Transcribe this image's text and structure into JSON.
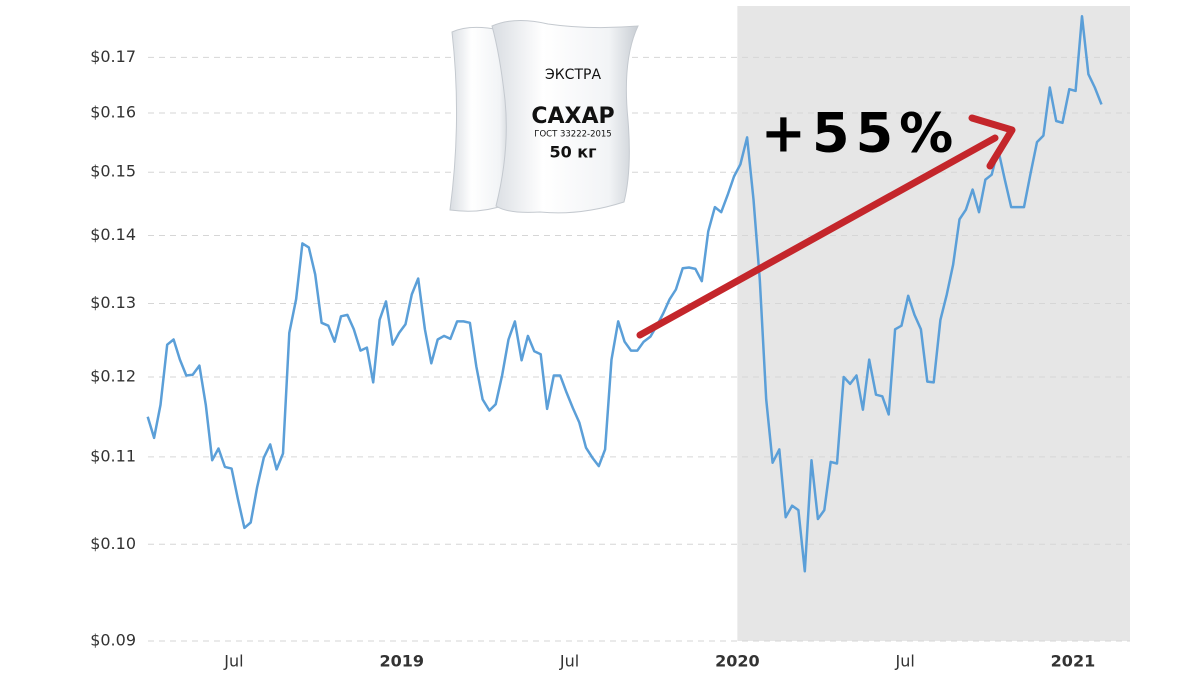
{
  "chart_data": {
    "type": "line",
    "log_scale": true,
    "grid": true,
    "color": "#5b9fd8",
    "highlight_start": 2020,
    "annotation": "+55%",
    "bag_labels": [
      "ЭКСТРА",
      "САХАР",
      "ГОСТ 33222-2015",
      "50 кг"
    ],
    "xlim": [
      2018.22,
      2021.17
    ],
    "ylim": [
      0.09,
      0.179
    ],
    "xticks": [
      {
        "value": 2018.5,
        "label": "Jul"
      },
      2019,
      {
        "value": 2019.5,
        "label": "Jul"
      },
      2020,
      {
        "value": 2020.5,
        "label": "Jul"
      },
      2021
    ],
    "yticks": [
      {
        "value": 0.09,
        "label": "$0.09"
      },
      {
        "value": 0.1,
        "label": "$0.10"
      },
      {
        "value": 0.11,
        "label": "$0.11"
      },
      {
        "value": 0.12,
        "label": "$0.12"
      },
      {
        "value": 0.13,
        "label": "$0.13"
      },
      {
        "value": 0.14,
        "label": "$0.14"
      },
      {
        "value": 0.15,
        "label": "$0.15"
      },
      {
        "value": 0.16,
        "label": "$0.16"
      },
      {
        "value": 0.17,
        "label": "$0.17"
      }
    ],
    "x": [
      2018.243,
      2018.262,
      2018.281,
      2018.301,
      2018.32,
      2018.339,
      2018.358,
      2018.377,
      2018.397,
      2018.416,
      2018.435,
      2018.454,
      2018.473,
      2018.493,
      2018.512,
      2018.531,
      2018.55,
      2018.569,
      2018.589,
      2018.608,
      2018.627,
      2018.646,
      2018.665,
      2018.685,
      2018.704,
      2018.723,
      2018.742,
      2018.761,
      2018.781,
      2018.8,
      2018.819,
      2018.838,
      2018.857,
      2018.877,
      2018.896,
      2018.915,
      2018.934,
      2018.953,
      2018.973,
      2018.992,
      2019.011,
      2019.03,
      2019.049,
      2019.069,
      2019.088,
      2019.107,
      2019.126,
      2019.145,
      2019.165,
      2019.184,
      2019.203,
      2019.222,
      2019.241,
      2019.261,
      2019.28,
      2019.299,
      2019.318,
      2019.337,
      2019.357,
      2019.376,
      2019.395,
      2019.414,
      2019.433,
      2019.453,
      2019.472,
      2019.491,
      2019.51,
      2019.529,
      2019.549,
      2019.568,
      2019.587,
      2019.606,
      2019.625,
      2019.645,
      2019.664,
      2019.683,
      2019.702,
      2019.721,
      2019.741,
      2019.76,
      2019.779,
      2019.798,
      2019.817,
      2019.837,
      2019.856,
      2019.875,
      2019.894,
      2019.913,
      2019.933,
      2019.952,
      2019.971,
      2019.99,
      2020.009,
      2020.029,
      2020.048,
      2020.067,
      2020.086,
      2020.105,
      2020.125,
      2020.144,
      2020.163,
      2020.182,
      2020.201,
      2020.221,
      2020.24,
      2020.259,
      2020.278,
      2020.297,
      2020.317,
      2020.336,
      2020.355,
      2020.374,
      2020.393,
      2020.413,
      2020.432,
      2020.451,
      2020.47,
      2020.489,
      2020.509,
      2020.528,
      2020.547,
      2020.566,
      2020.585,
      2020.605,
      2020.624,
      2020.643,
      2020.662,
      2020.681,
      2020.701,
      2020.72,
      2020.739,
      2020.758,
      2020.777,
      2020.797,
      2020.816,
      2020.835,
      2020.854,
      2020.873,
      2020.893,
      2020.912,
      2020.931,
      2020.95,
      2020.969,
      2020.989,
      2021.008,
      2021.027,
      2021.046,
      2021.065,
      2021.085
    ],
    "values": [
      0.1149,
      0.1123,
      0.1164,
      0.1243,
      0.125,
      0.1223,
      0.1202,
      0.1203,
      0.1215,
      0.1164,
      0.1096,
      0.111,
      0.1088,
      0.1086,
      0.105,
      0.1018,
      0.1024,
      0.1064,
      0.1099,
      0.1115,
      0.1085,
      0.1104,
      0.1259,
      0.1306,
      0.1388,
      0.1382,
      0.1342,
      0.1273,
      0.1269,
      0.1247,
      0.1282,
      0.1284,
      0.1264,
      0.1235,
      0.1239,
      0.1193,
      0.1277,
      0.1303,
      0.1243,
      0.1259,
      0.1271,
      0.1313,
      0.1336,
      0.1264,
      0.1218,
      0.125,
      0.1255,
      0.1251,
      0.1275,
      0.1275,
      0.1273,
      0.1214,
      0.1171,
      0.1157,
      0.1165,
      0.1202,
      0.125,
      0.1275,
      0.1222,
      0.1255,
      0.1234,
      0.123,
      0.1159,
      0.1202,
      0.1202,
      0.118,
      0.116,
      0.1142,
      0.1111,
      0.1099,
      0.1089,
      0.1109,
      0.1223,
      0.1275,
      0.1247,
      0.1235,
      0.1235,
      0.1247,
      0.1254,
      0.1269,
      0.1286,
      0.1306,
      0.132,
      0.1351,
      0.1352,
      0.135,
      0.1332,
      0.1406,
      0.1444,
      0.1436,
      0.1463,
      0.1493,
      0.1513,
      0.1558,
      0.1456,
      0.1334,
      0.1171,
      0.1093,
      0.1109,
      0.103,
      0.1043,
      0.1038,
      0.0971,
      0.1096,
      0.1028,
      0.1038,
      0.1094,
      0.1092,
      0.12,
      0.1191,
      0.1202,
      0.1158,
      0.1223,
      0.1177,
      0.1175,
      0.1152,
      0.1264,
      0.1269,
      0.1311,
      0.1284,
      0.1264,
      0.1194,
      0.1193,
      0.1277,
      0.1313,
      0.1356,
      0.1425,
      0.144,
      0.1472,
      0.1436,
      0.1488,
      0.1496,
      0.1538,
      0.1488,
      0.1444,
      0.1444,
      0.1444,
      0.1496,
      0.155,
      0.1561,
      0.1645,
      0.1586,
      0.1583,
      0.1642,
      0.1639,
      0.1778,
      0.1669,
      0.1645,
      0.1615
    ]
  }
}
